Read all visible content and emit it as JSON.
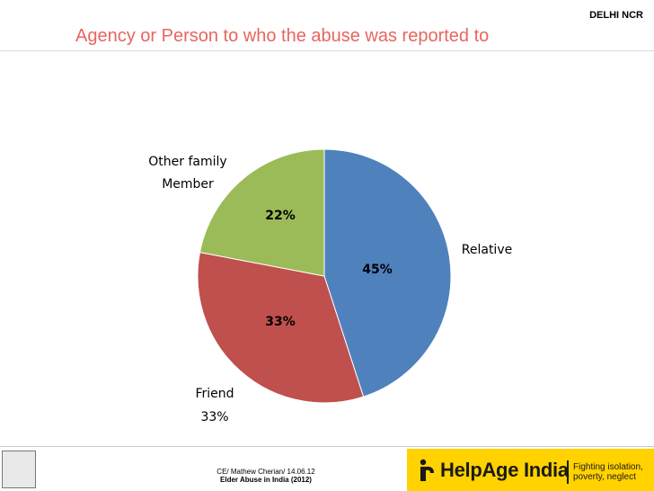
{
  "region_tag": "DELHI NCR",
  "title": "Agency or Person to who the abuse was reported to",
  "chart_data": {
    "type": "pie",
    "title": "Agency or Person to who the abuse was reported to",
    "slices": [
      {
        "label": "Relative",
        "value": 45,
        "value_label": "45%",
        "color": "#4f81bd"
      },
      {
        "label": "Friend",
        "value": 33,
        "value_label": "33%",
        "color": "#c0504d"
      },
      {
        "label": "Other family Member",
        "value": 22,
        "value_label": "22%",
        "color": "#9bbb59"
      }
    ],
    "outer_labels": {
      "relative": "Relative",
      "friend_line1": "Friend",
      "friend_line2": "33%",
      "other_line1": "Other family",
      "other_line2": "Member"
    }
  },
  "footer": {
    "credit_line1": "CE/ Mathew Cherian/ 14.06.12",
    "credit_line2": "Elder Abuse in India (2012)",
    "brand_name": "HelpAge India",
    "brand_tagline_line1": "Fighting isolation,",
    "brand_tagline_line2": "poverty, neglect",
    "brand_color": "#ffd200"
  }
}
